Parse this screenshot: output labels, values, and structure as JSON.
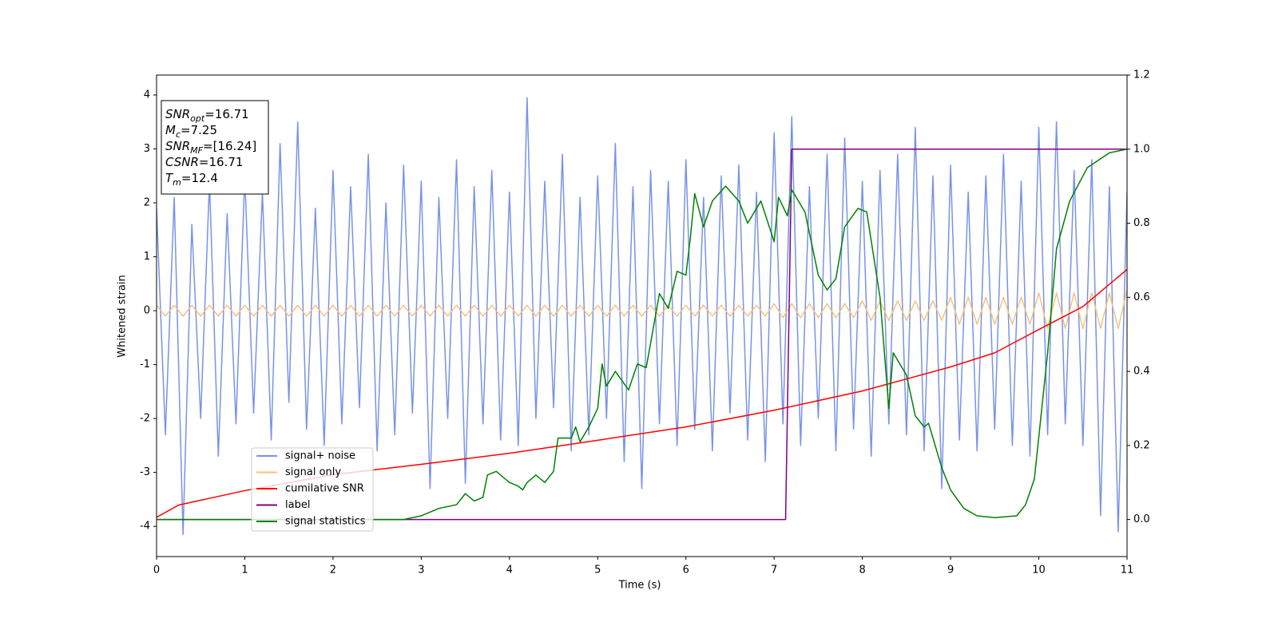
{
  "chart_data": {
    "type": "line",
    "xlabel": "Time (s)",
    "ylabel": "Whitened strain",
    "xlim": [
      0,
      11
    ],
    "ylim": [
      -4.56,
      4.37
    ],
    "y2lim": [
      -0.1,
      1.2
    ],
    "xticks": [
      0,
      1,
      2,
      3,
      4,
      5,
      6,
      7,
      8,
      9,
      10,
      11
    ],
    "yticks": [
      -4,
      -3,
      -2,
      -1,
      0,
      1,
      2,
      3,
      4
    ],
    "y2ticks": [
      {
        "value": 0,
        "label": "0.0"
      },
      {
        "value": 0.2,
        "label": "0.2"
      },
      {
        "value": 0.4,
        "label": "0.4"
      },
      {
        "value": 0.6,
        "label": "0.6"
      },
      {
        "value": 0.8,
        "label": "0.8"
      },
      {
        "value": 1,
        "label": "1.0"
      },
      {
        "value": 1.2,
        "label": "1.2"
      }
    ],
    "annotations": [
      {
        "main": "SNR",
        "sub": "opt",
        "rest": "=16.71"
      },
      {
        "main": "M",
        "sub": "c",
        "rest": "=7.25"
      },
      {
        "main": "SNR",
        "sub": "MF",
        "rest": "=[16.24]"
      },
      {
        "main": "CSNR",
        "rest": "=16.71"
      },
      {
        "main": "T",
        "sub": "m",
        "rest": "=12.4"
      }
    ],
    "x": [
      0,
      0.1,
      0.2,
      0.3,
      0.4,
      0.5,
      0.6,
      0.7,
      0.8,
      0.9,
      1,
      1.1,
      1.2,
      1.3,
      1.4,
      1.5,
      1.6,
      1.7,
      1.8,
      1.9,
      2,
      2.1,
      2.2,
      2.3,
      2.4,
      2.5,
      2.6,
      2.7,
      2.8,
      2.9,
      3,
      3.1,
      3.2,
      3.3,
      3.4,
      3.5,
      3.6,
      3.7,
      3.8,
      3.9,
      4,
      4.1,
      4.2,
      4.3,
      4.4,
      4.5,
      4.6,
      4.7,
      4.8,
      4.9,
      5,
      5.1,
      5.2,
      5.3,
      5.4,
      5.5,
      5.6,
      5.7,
      5.8,
      5.9,
      6,
      6.1,
      6.2,
      6.3,
      6.4,
      6.5,
      6.6,
      6.7,
      6.8,
      6.9,
      7,
      7.1,
      7.2,
      7.3,
      7.4,
      7.5,
      7.6,
      7.7,
      7.8,
      7.9,
      8,
      8.1,
      8.2,
      8.3,
      8.4,
      8.5,
      8.6,
      8.7,
      8.8,
      8.9,
      9,
      9.1,
      9.2,
      9.3,
      9.4,
      9.5,
      9.6,
      9.7,
      9.8,
      9.9,
      10,
      10.1,
      10.2,
      10.3,
      10.4,
      10.5,
      10.6,
      10.7,
      10.8,
      10.9,
      11
    ],
    "series": [
      {
        "name": "signal+ noise",
        "color": "#7893e8",
        "values": [
          1.9,
          -2.3,
          2.1,
          -4.15,
          1.6,
          -2.0,
          2.4,
          -2.7,
          1.8,
          -2.1,
          2.5,
          -1.9,
          2.2,
          -2.4,
          3.1,
          -1.7,
          3.5,
          -2.2,
          1.9,
          -2.5,
          2.6,
          -2.1,
          2.3,
          -1.8,
          2.9,
          -2.6,
          2.0,
          -2.3,
          2.7,
          -1.9,
          2.4,
          -3.3,
          2.1,
          -2.0,
          2.8,
          -3.2,
          2.3,
          -2.1,
          2.6,
          -2.4,
          2.2,
          -2.5,
          3.95,
          -2.0,
          2.4,
          -1.8,
          2.9,
          -2.6,
          2.1,
          -2.3,
          2.5,
          -2.0,
          3.1,
          -2.8,
          2.3,
          -3.3,
          2.6,
          -2.1,
          2.4,
          -2.5,
          2.8,
          -2.2,
          2.1,
          -2.6,
          2.5,
          -1.9,
          2.7,
          -2.4,
          2.2,
          -2.8,
          3.3,
          -2.1,
          3.6,
          -2.5,
          2.3,
          -2.0,
          2.9,
          -2.6,
          3.2,
          -2.2,
          2.4,
          -2.7,
          2.6,
          -2.1,
          2.9,
          -2.3,
          3.4,
          -2.6,
          2.5,
          -3.3,
          2.7,
          -2.4,
          2.2,
          -2.6,
          2.5,
          -2.2,
          2.9,
          -2.5,
          2.4,
          -2.7,
          3.4,
          -2.3,
          3.5,
          -2.1,
          2.6,
          -2.5,
          2.8,
          -3.8,
          2.3,
          -4.1,
          2.2
        ]
      },
      {
        "name": "signal only",
        "color": "#f5c27f",
        "values": [
          0.1,
          -0.1,
          0.1,
          -0.1,
          0.1,
          -0.1,
          0.1,
          -0.1,
          0.1,
          -0.1,
          0.1,
          -0.1,
          0.1,
          -0.1,
          0.1,
          -0.1,
          0.1,
          -0.1,
          0.1,
          -0.1,
          0.1,
          -0.1,
          0.1,
          -0.1,
          0.1,
          -0.1,
          0.1,
          -0.1,
          0.1,
          -0.1,
          0.1,
          -0.1,
          0.1,
          -0.1,
          0.1,
          -0.1,
          0.1,
          -0.1,
          0.1,
          -0.1,
          0.1,
          -0.1,
          0.1,
          -0.1,
          0.1,
          -0.1,
          0.1,
          -0.1,
          0.1,
          -0.1,
          0.1,
          -0.1,
          0.1,
          -0.1,
          0.1,
          -0.1,
          0.1,
          -0.1,
          0.1,
          -0.1,
          0.1,
          -0.1,
          0.1,
          -0.1,
          0.1,
          -0.1,
          0.1,
          -0.1,
          0.1,
          -0.1,
          0.13,
          -0.13,
          0.13,
          -0.13,
          0.13,
          -0.13,
          0.13,
          -0.13,
          0.13,
          -0.13,
          0.18,
          -0.18,
          0.18,
          -0.18,
          0.18,
          -0.18,
          0.18,
          -0.18,
          0.18,
          -0.18,
          0.25,
          -0.25,
          0.25,
          -0.25,
          0.25,
          -0.25,
          0.25,
          -0.25,
          0.25,
          -0.25,
          0.33,
          -0.33,
          0.33,
          -0.33,
          0.33,
          -0.33,
          0.33,
          -0.33,
          0.33,
          -0.33,
          0.38
        ]
      },
      {
        "name": "cumilative SNR",
        "color": "#ff0000",
        "axis": "y2",
        "x": [
          0,
          0.25,
          0.5,
          1,
          2,
          3,
          4,
          5,
          6,
          7,
          8,
          9,
          9.5,
          10,
          10.5,
          11
        ],
        "values": [
          0.006,
          0.039,
          0.052,
          0.078,
          0.121,
          0.149,
          0.179,
          0.214,
          0.25,
          0.295,
          0.347,
          0.412,
          0.45,
          0.513,
          0.575,
          0.675
        ]
      },
      {
        "name": "label",
        "color": "#800080",
        "axis": "y2",
        "x": [
          0,
          7.13,
          7.2,
          11
        ],
        "values": [
          0,
          0,
          1,
          1
        ]
      },
      {
        "name": "signal statistics",
        "color": "#008000",
        "axis": "y2",
        "x": [
          0,
          2.8,
          3.0,
          3.2,
          3.4,
          3.5,
          3.6,
          3.7,
          3.75,
          3.85,
          4.0,
          4.1,
          4.15,
          4.2,
          4.3,
          4.4,
          4.5,
          4.55,
          4.7,
          4.75,
          4.8,
          4.9,
          5.0,
          5.05,
          5.1,
          5.2,
          5.35,
          5.45,
          5.55,
          5.7,
          5.8,
          5.9,
          6.0,
          6.05,
          6.1,
          6.2,
          6.3,
          6.45,
          6.6,
          6.7,
          6.85,
          7.0,
          7.05,
          7.15,
          7.2,
          7.35,
          7.5,
          7.6,
          7.7,
          7.8,
          7.95,
          8.05,
          8.2,
          8.3,
          8.35,
          8.5,
          8.6,
          8.7,
          8.75,
          8.9,
          9.0,
          9.15,
          9.3,
          9.5,
          9.75,
          9.85,
          9.95,
          10.1,
          10.2,
          10.35,
          10.55,
          10.8,
          11.0
        ],
        "values": [
          0,
          0,
          0.01,
          0.03,
          0.04,
          0.07,
          0.05,
          0.06,
          0.12,
          0.13,
          0.1,
          0.09,
          0.08,
          0.1,
          0.12,
          0.1,
          0.13,
          0.22,
          0.22,
          0.25,
          0.21,
          0.25,
          0.3,
          0.42,
          0.36,
          0.4,
          0.35,
          0.42,
          0.41,
          0.61,
          0.57,
          0.67,
          0.66,
          0.76,
          0.88,
          0.79,
          0.86,
          0.9,
          0.86,
          0.8,
          0.86,
          0.75,
          0.87,
          0.82,
          0.89,
          0.83,
          0.66,
          0.62,
          0.65,
          0.79,
          0.84,
          0.83,
          0.6,
          0.3,
          0.45,
          0.39,
          0.28,
          0.25,
          0.26,
          0.14,
          0.08,
          0.03,
          0.01,
          0.005,
          0.01,
          0.04,
          0.11,
          0.45,
          0.73,
          0.86,
          0.95,
          0.99,
          1
        ]
      }
    ]
  }
}
